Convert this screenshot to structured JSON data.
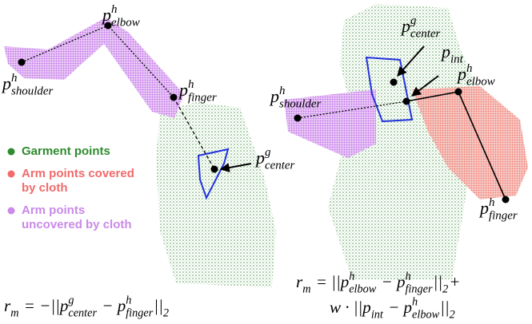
{
  "left": {
    "labels": [
      [
        {
          "base": "p",
          "sup": "h",
          "sub": "elbow"
        }
      ],
      [
        {
          "base": "p",
          "sup": "h",
          "sub": "shoulder"
        }
      ],
      [
        {
          "base": "p",
          "sup": "h",
          "sub": "finger"
        }
      ],
      [
        {
          "base": "p",
          "sup": "g",
          "sub": "center"
        }
      ]
    ],
    "formula": [
      {
        "base": "r",
        "sub": "m"
      },
      {
        "base": " = −||p",
        "sup": "g",
        "sub": "center"
      },
      {
        "base": " − p",
        "sup": "h",
        "sub": "finger"
      },
      {
        "base": "||",
        "sub": "2"
      }
    ]
  },
  "legend": [
    {
      "lines": [
        "Garment points"
      ],
      "color": "#2e8b2e"
    },
    {
      "lines": [
        "Arm points covered",
        "by cloth"
      ],
      "color": "#f26a6a"
    },
    {
      "lines": [
        "Arm points",
        "uncovered by cloth"
      ],
      "color": "#c98ae8"
    }
  ],
  "right": {
    "labels": [
      [
        {
          "base": "p",
          "sup": "g",
          "sub": "center"
        }
      ],
      [
        {
          "base": "p",
          "sub": "int"
        }
      ],
      [
        {
          "base": "p",
          "sup": "h",
          "sub": "elbow"
        }
      ],
      [
        {
          "base": "p",
          "sup": "h",
          "sub": "shoulder"
        }
      ],
      [
        {
          "base": "p",
          "sup": "h",
          "sub": "finger"
        }
      ]
    ],
    "formula_line1": [
      {
        "base": "r",
        "sub": "m"
      },
      {
        "base": " = ||p",
        "sup": "h",
        "sub": "elbow"
      },
      {
        "base": " − p",
        "sup": "h",
        "sub": "finger"
      },
      {
        "base": "||",
        "sub": "2"
      },
      {
        "base": "+"
      }
    ],
    "formula_line2": [
      {
        "base": "w · ||p",
        "sub": "int"
      },
      {
        "base": " − p",
        "sup": "h",
        "sub": "elbow"
      },
      {
        "base": "||",
        "sub": "2"
      }
    ]
  }
}
